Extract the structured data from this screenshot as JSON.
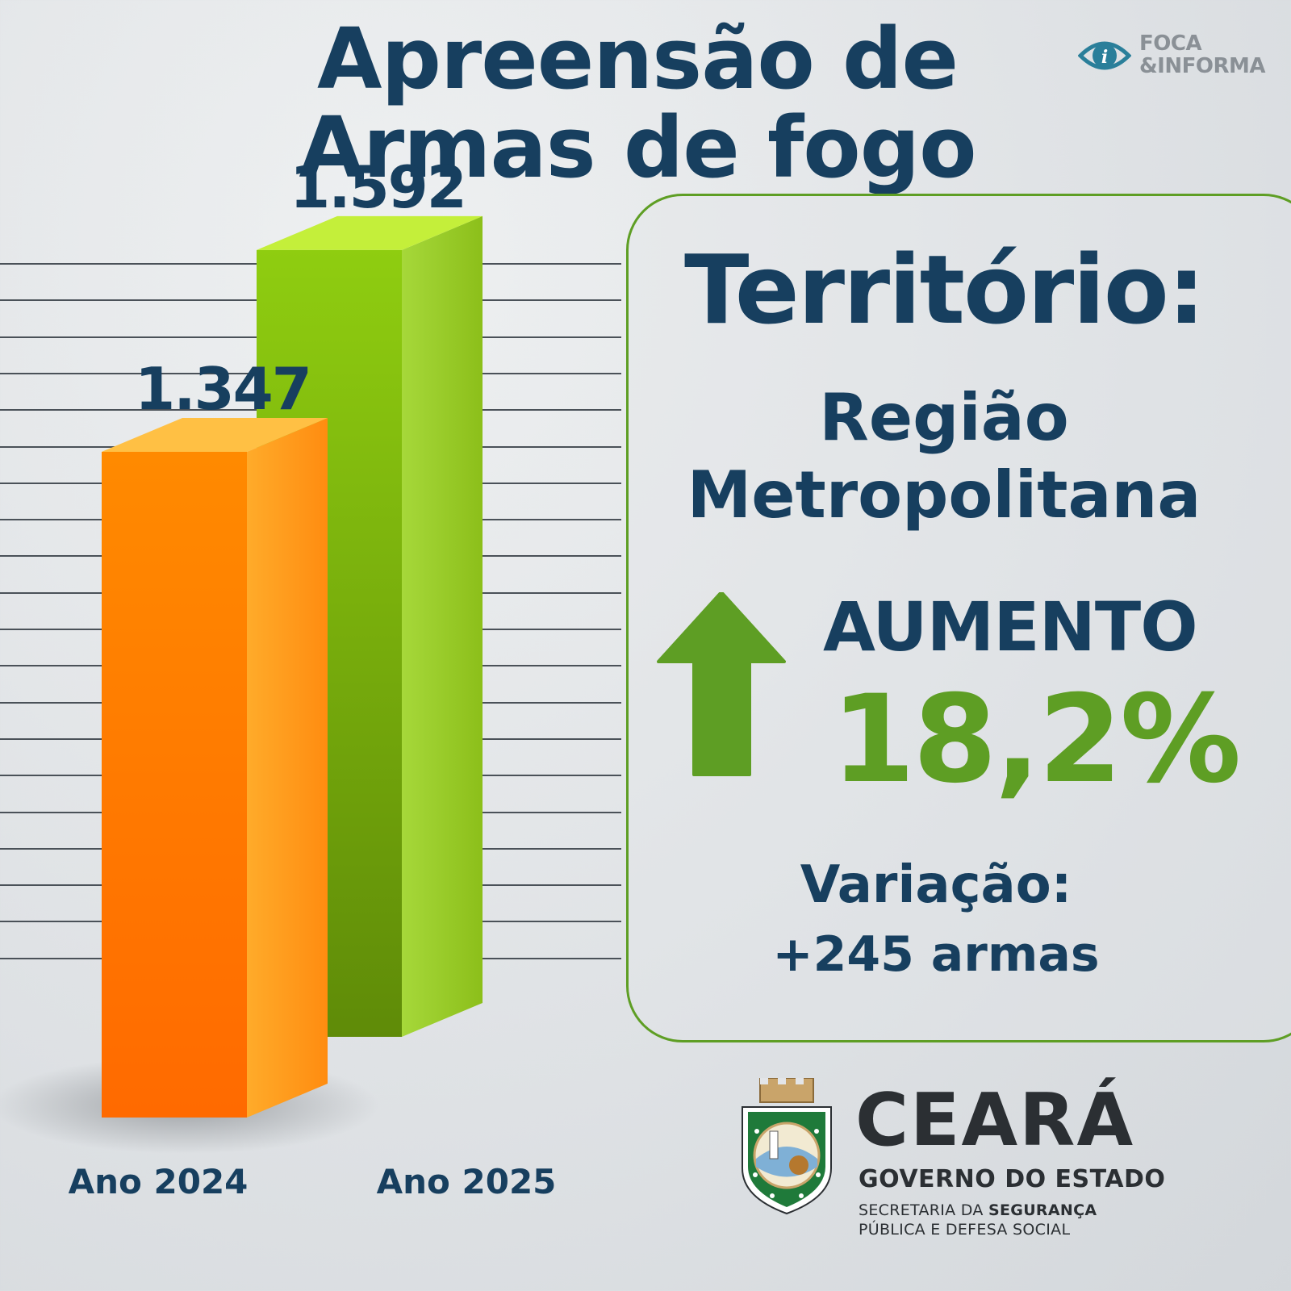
{
  "title": {
    "line1": "Apreensão de",
    "line2": "Armas de fogo"
  },
  "brand": {
    "line1": "FOCA",
    "line2": "&INFORMA",
    "eye_icon": "eye-info-icon",
    "color": "#8a9096"
  },
  "chart_data": {
    "type": "bar",
    "categories": [
      "Ano 2024",
      "Ano 2025"
    ],
    "values": [
      1347,
      1592
    ],
    "value_labels": [
      "1.347",
      "1.592"
    ],
    "colors": [
      "#ff7a00",
      "#8cc31a"
    ],
    "ylim": [
      0,
      1700
    ],
    "grid": true
  },
  "panel": {
    "heading": "Território:",
    "region_line1": "Região",
    "region_line2": "Metropolitana",
    "trend_icon": "up-arrow-icon",
    "trend_label": "AUMENTO",
    "trend_value": "18,2%",
    "variation_label": "Variação:",
    "variation_value": "+245 armas",
    "accent": "#5e9e24"
  },
  "footer": {
    "state": "CEARÁ",
    "government": "GOVERNO DO ESTADO",
    "secretaria_prefix": "SECRETARIA DA",
    "secretaria_bold": "SEGURANÇA",
    "secretaria_line2": "PÚBLICA E DEFESA SOCIAL",
    "crest_icon": "state-crest-icon"
  }
}
